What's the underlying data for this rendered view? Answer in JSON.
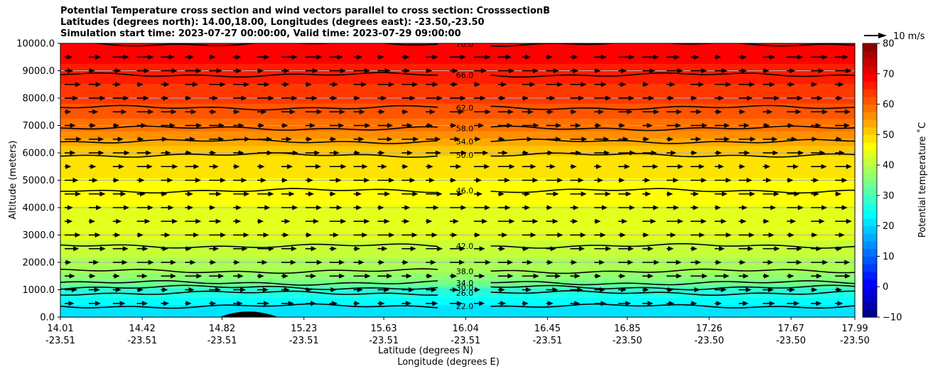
{
  "title_lines": [
    "Potential Temperature cross section and wind vectors parallel to cross section: CrosssectionB",
    "Latitudes (degrees north): 14.00,18.00, Longitudes (degrees east): -23.50,-23.50",
    "Simulation start time: 2023-07-27 00:00:00, Valid time: 2023-07-29 09:00:00"
  ],
  "chart_data": {
    "type": "contour",
    "title": "Potential Temperature cross section and wind vectors parallel to cross section: CrosssectionB",
    "ylabel": "Altitude (meters)",
    "xlabel_lines": [
      "Latitude (degrees N)",
      "Longitude (degrees E)"
    ],
    "ylim": [
      0,
      10000
    ],
    "yticks": [
      "0.0",
      "1000.0",
      "2000.0",
      "3000.0",
      "4000.0",
      "5000.0",
      "6000.0",
      "7000.0",
      "8000.0",
      "9000.0",
      "10000.0"
    ],
    "xticks": [
      {
        "lat": "14.01",
        "lon": "-23.51"
      },
      {
        "lat": "14.42",
        "lon": "-23.51"
      },
      {
        "lat": "14.82",
        "lon": "-23.51"
      },
      {
        "lat": "15.23",
        "lon": "-23.51"
      },
      {
        "lat": "15.63",
        "lon": "-23.51"
      },
      {
        "lat": "16.04",
        "lon": "-23.51"
      },
      {
        "lat": "16.45",
        "lon": "-23.51"
      },
      {
        "lat": "16.85",
        "lon": "-23.50"
      },
      {
        "lat": "17.26",
        "lon": "-23.50"
      },
      {
        "lat": "17.67",
        "lon": "-23.50"
      },
      {
        "lat": "17.99",
        "lon": "-23.50"
      }
    ],
    "grid": true,
    "colorbar": {
      "label": "Potential temperature ˚C",
      "min": -10,
      "max": 80,
      "step": 2.5,
      "ticks": [
        "−10",
        "0",
        "10",
        "20",
        "30",
        "40",
        "50",
        "60",
        "70",
        "80"
      ],
      "colormap": "jet"
    },
    "contours": [
      {
        "label": "22.0",
        "altitude": 400
      },
      {
        "label": "26.0",
        "altitude": 880
      },
      {
        "label": "30.0",
        "altitude": 1080
      },
      {
        "label": "34.0",
        "altitude": 1250
      },
      {
        "label": "38.0",
        "altitude": 1680
      },
      {
        "label": "42.0",
        "altitude": 2600
      },
      {
        "label": "46.0",
        "altitude": 4620
      },
      {
        "label": "50.0",
        "altitude": 5920
      },
      {
        "label": "54.0",
        "altitude": 6420
      },
      {
        "label": "58.0",
        "altitude": 6900
      },
      {
        "label": "62.0",
        "altitude": 7650
      },
      {
        "label": "66.0",
        "altitude": 8850
      },
      {
        "label": "70.0",
        "altitude": 9980
      }
    ],
    "wind_vector_key": {
      "label": "10 m/s",
      "speed": 10,
      "direction": "parallel to cross section"
    },
    "terrain": {
      "lat": 14.95,
      "peak_altitude": 200
    }
  }
}
